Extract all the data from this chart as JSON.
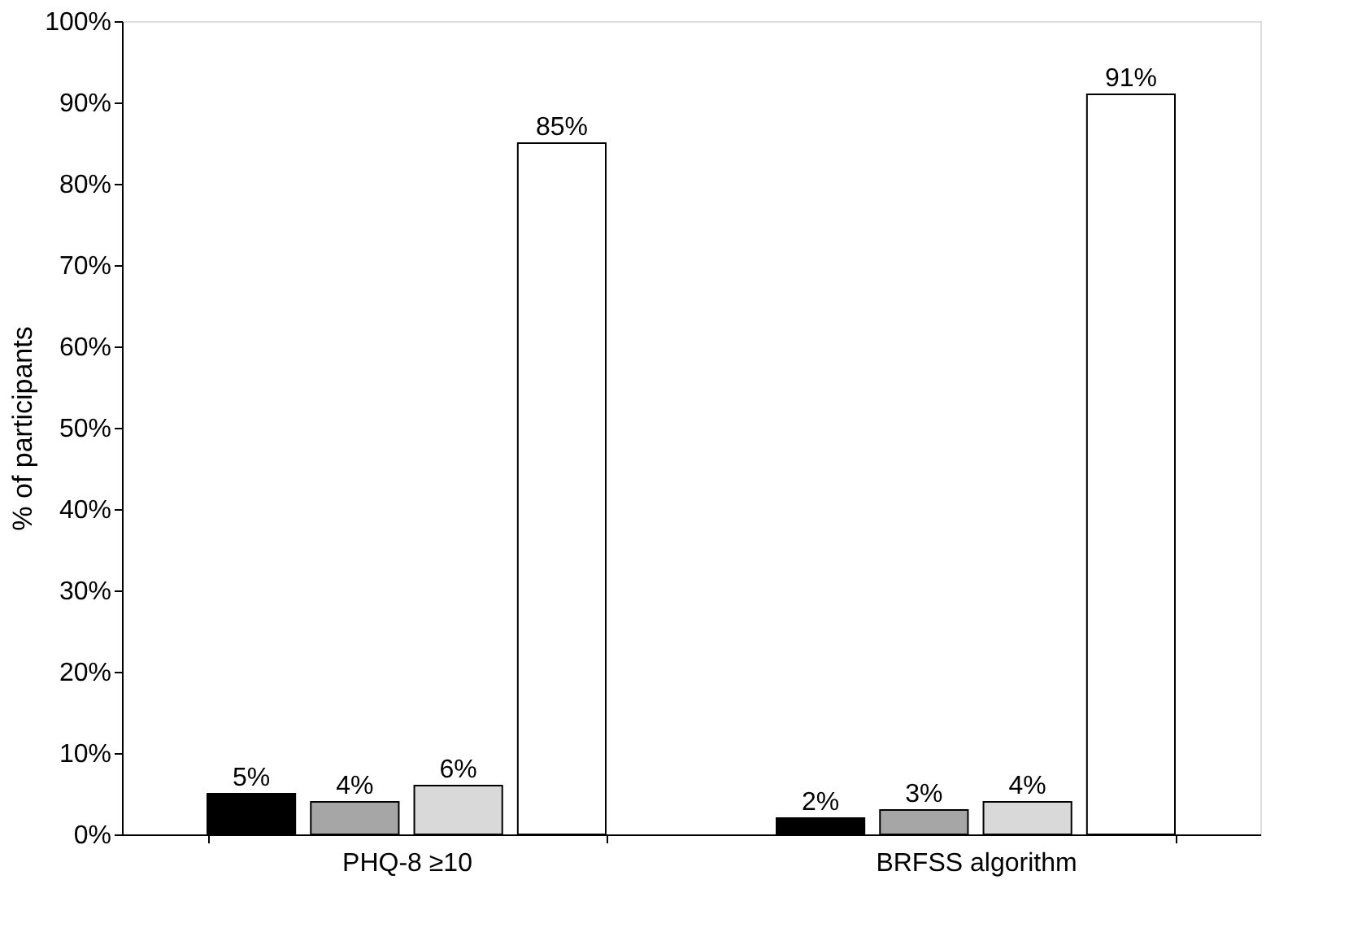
{
  "chart_data": {
    "type": "bar",
    "ylabel": "% of participants",
    "categories": [
      "PHQ-8 ≥10",
      "BRFSS algorithm"
    ],
    "series": [
      {
        "color": "#000000",
        "values": [
          5,
          2
        ],
        "value_labels": [
          "5%",
          "2%"
        ]
      },
      {
        "color": "#a6a6a6",
        "values": [
          4,
          3
        ],
        "value_labels": [
          "4%",
          "3%"
        ]
      },
      {
        "color": "#d9d9d9",
        "values": [
          6,
          4
        ],
        "value_labels": [
          "6%",
          "4%"
        ]
      },
      {
        "color": "#ffffff",
        "values": [
          85,
          91
        ],
        "value_labels": [
          "85%",
          "91%"
        ]
      }
    ],
    "ylim": [
      0,
      100
    ],
    "yticks": [
      {
        "value": 0,
        "label": "0%"
      },
      {
        "value": 10,
        "label": "10%"
      },
      {
        "value": 20,
        "label": "20%"
      },
      {
        "value": 30,
        "label": "30%"
      },
      {
        "value": 40,
        "label": "40%"
      },
      {
        "value": 50,
        "label": "50%"
      },
      {
        "value": 60,
        "label": "60%"
      },
      {
        "value": 70,
        "label": "70%"
      },
      {
        "value": 80,
        "label": "80%"
      },
      {
        "value": 90,
        "label": "90%"
      },
      {
        "value": 100,
        "label": "100%"
      }
    ],
    "grid": false
  }
}
